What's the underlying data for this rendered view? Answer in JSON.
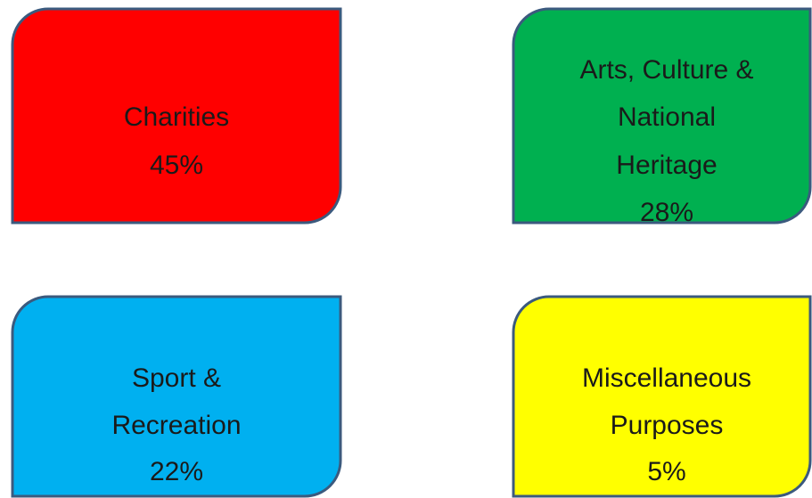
{
  "boxes": [
    {
      "lines": [
        "Charities"
      ],
      "percent": "45%"
    },
    {
      "lines": [
        "Arts, Culture &",
        "National",
        "Heritage"
      ],
      "percent": "28%"
    },
    {
      "lines": [
        "Sport &",
        "Recreation"
      ],
      "percent": "22%"
    },
    {
      "lines": [
        "Miscellaneous",
        "Purposes"
      ],
      "percent": "5%"
    }
  ]
}
